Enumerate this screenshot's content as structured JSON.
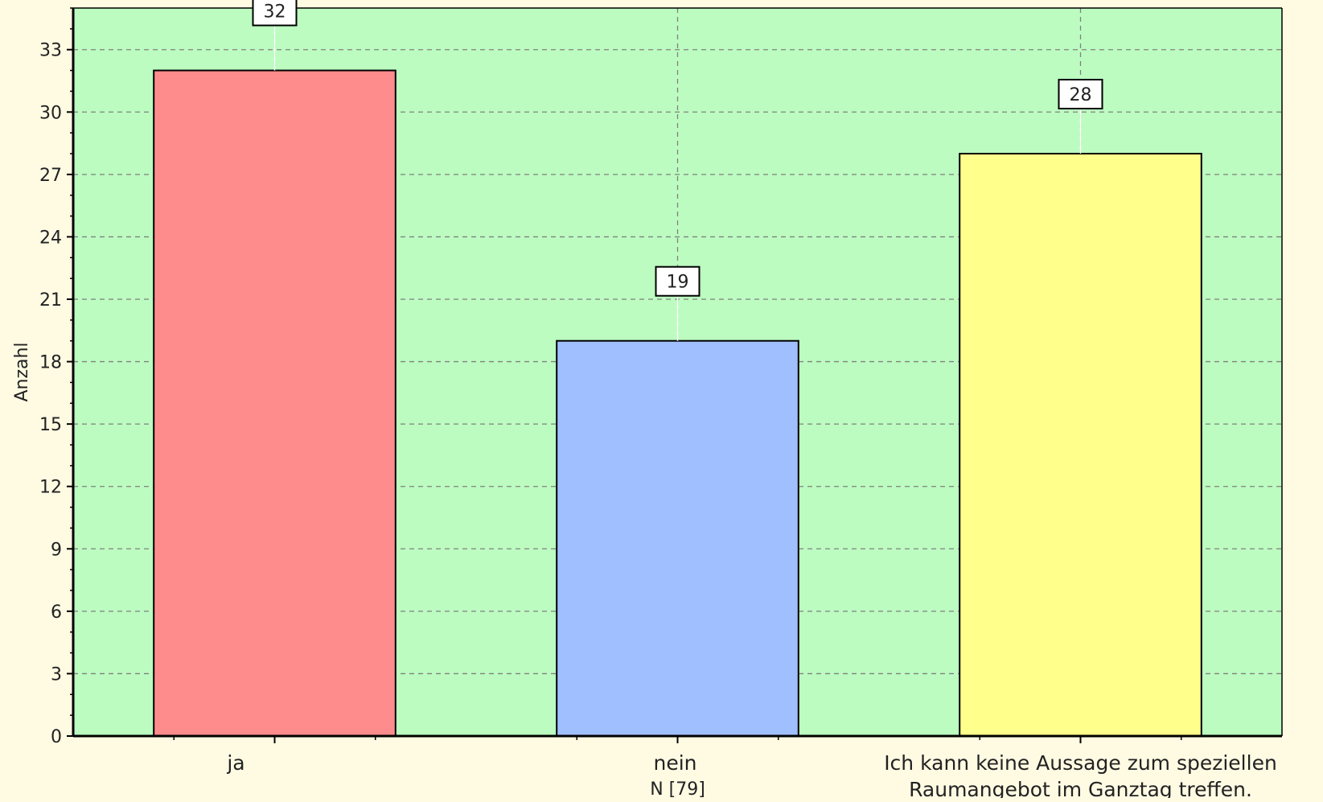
{
  "chart_data": {
    "type": "bar",
    "categories": [
      [
        "ja"
      ],
      [
        "nein"
      ],
      [
        "Ich kann keine Aussage zum speziellen",
        "Raumangebot im Ganztag treffen."
      ]
    ],
    "values": [
      32,
      19,
      28
    ],
    "bar_colors": [
      "#ff8c8c",
      "#a0bfff",
      "#ffff8c"
    ],
    "ylabel": "Anzahl",
    "xlabel": "N [79]",
    "ylim": [
      0,
      35
    ],
    "yticks": [
      0,
      3,
      6,
      9,
      12,
      15,
      18,
      21,
      24,
      27,
      30,
      33
    ],
    "grid": true,
    "data_labels": [
      "32",
      "19",
      "28"
    ]
  },
  "colors": {
    "page_background": "#fffbe3",
    "plot_background": "#bcfcc0",
    "grid": "#808080",
    "axis": "#000000"
  }
}
